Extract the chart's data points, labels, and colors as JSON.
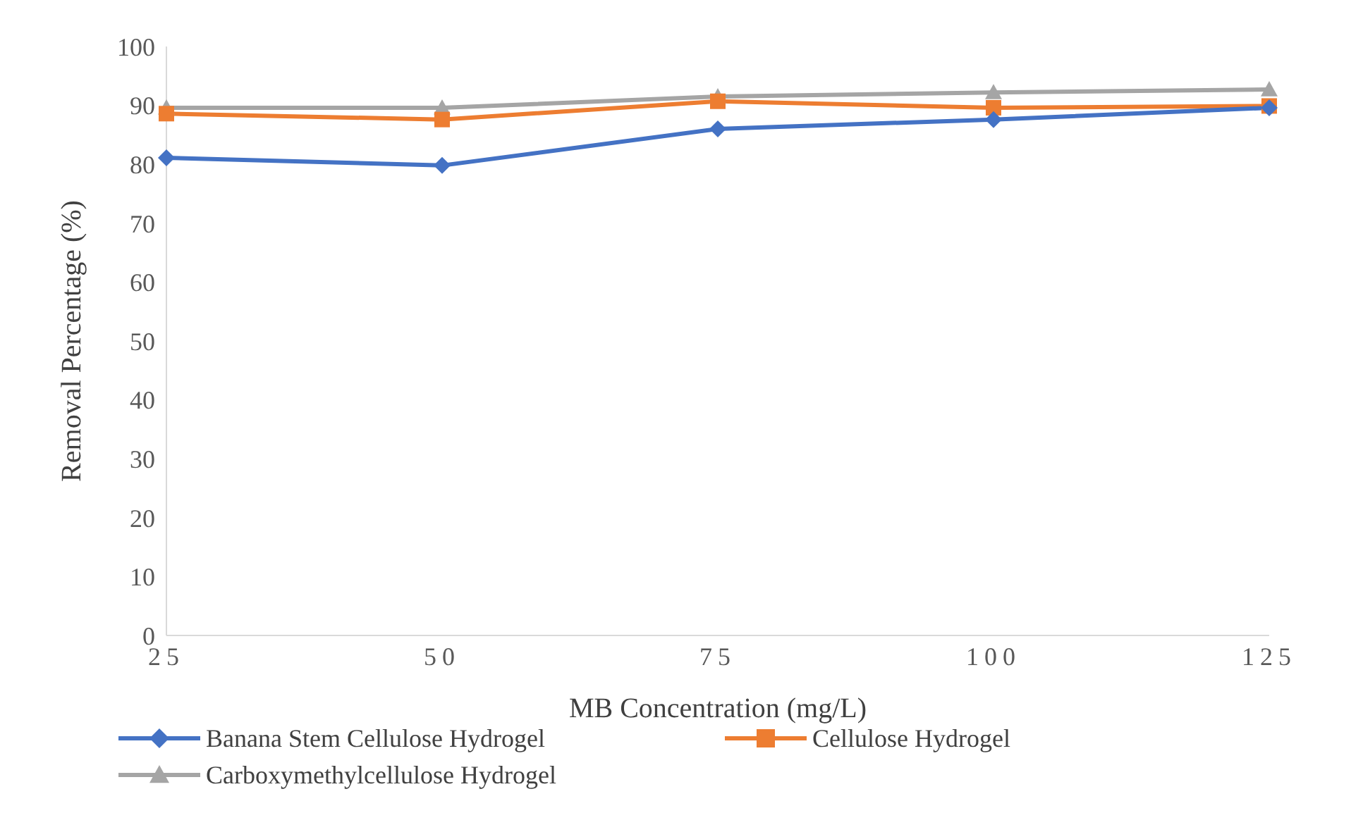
{
  "chart_data": {
    "type": "line",
    "xlabel": "MB Concentration (mg/L)",
    "ylabel": "Removal Percentage (%)",
    "categories": [
      "25",
      "50",
      "75",
      "100",
      "125"
    ],
    "ylim": [
      0,
      100
    ],
    "yticks": [
      0,
      10,
      20,
      30,
      40,
      50,
      60,
      70,
      80,
      90,
      100
    ],
    "grid": false,
    "legend": "bottom",
    "line_style": "solid",
    "series": [
      {
        "name": "Banana Stem Cellulose Hydrogel",
        "color": "#4472c4",
        "marker": "diamond",
        "values": [
          81.1,
          79.8,
          86.0,
          87.6,
          89.6
        ]
      },
      {
        "name": "Cellulose Hydrogel",
        "color": "#ed7d31",
        "marker": "square",
        "values": [
          88.6,
          87.6,
          90.7,
          89.6,
          89.9
        ]
      },
      {
        "name": "Carboxymethylcellulose Hydrogel",
        "color": "#a5a5a5",
        "marker": "triangle",
        "values": [
          89.6,
          89.6,
          91.5,
          92.2,
          92.7
        ]
      }
    ]
  }
}
